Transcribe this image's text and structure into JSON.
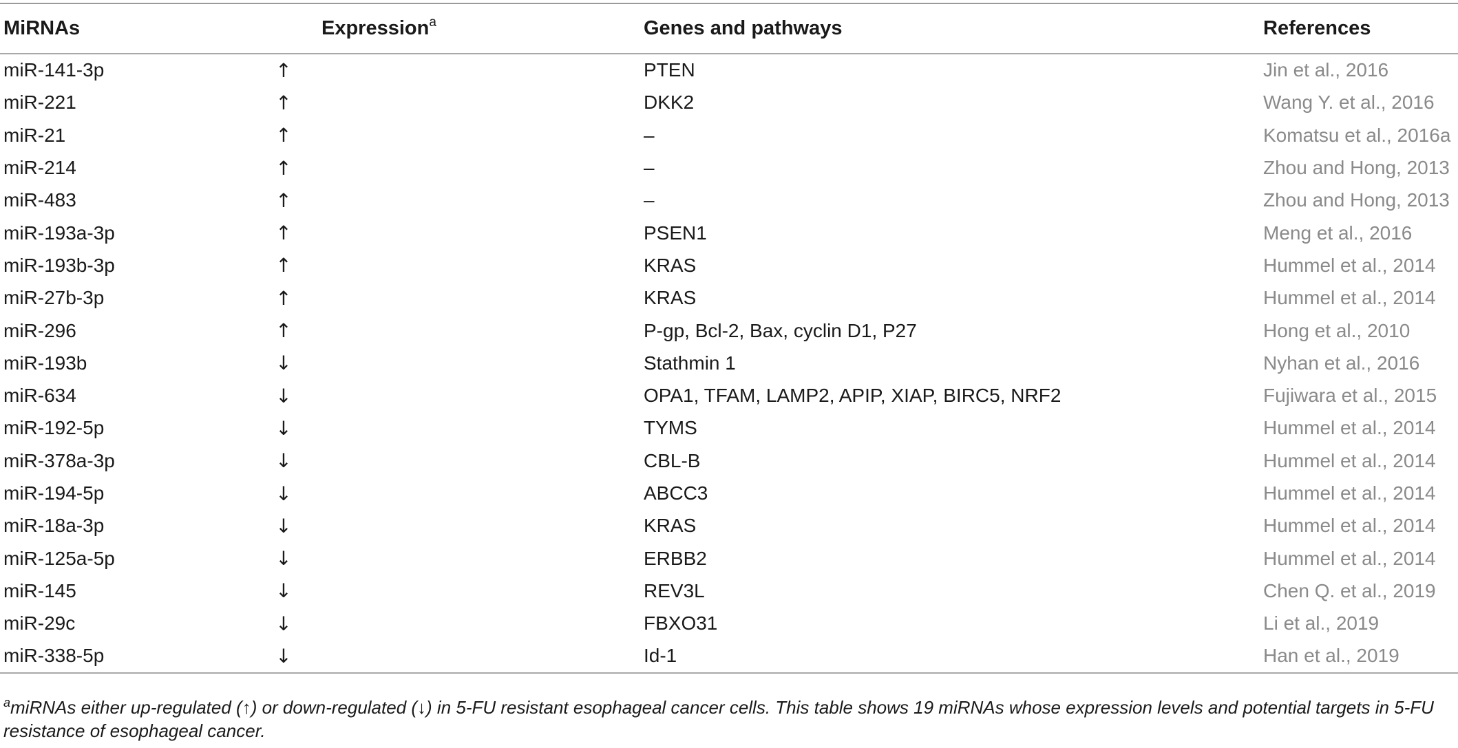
{
  "table": {
    "headers": {
      "mirna": "MiRNAs",
      "expression": "Expression",
      "expression_sup": "a",
      "genes": "Genes and pathways",
      "references": "References"
    },
    "rows": [
      {
        "mirna": "miR-141-3p",
        "expression": "↑",
        "genes": "PTEN",
        "reference": "Jin et al., 2016"
      },
      {
        "mirna": "miR-221",
        "expression": "↑",
        "genes": "DKK2",
        "reference": "Wang Y. et al., 2016"
      },
      {
        "mirna": "miR-21",
        "expression": "↑",
        "genes": "–",
        "reference": "Komatsu et al., 2016a"
      },
      {
        "mirna": "miR-214",
        "expression": "↑",
        "genes": "–",
        "reference": "Zhou and Hong, 2013"
      },
      {
        "mirna": "miR-483",
        "expression": "↑",
        "genes": "–",
        "reference": "Zhou and Hong, 2013"
      },
      {
        "mirna": "miR-193a-3p",
        "expression": "↑",
        "genes": "PSEN1",
        "reference": "Meng et al., 2016"
      },
      {
        "mirna": "miR-193b-3p",
        "expression": "↑",
        "genes": "KRAS",
        "reference": "Hummel et al., 2014"
      },
      {
        "mirna": "miR-27b-3p",
        "expression": "↑",
        "genes": "KRAS",
        "reference": "Hummel et al., 2014"
      },
      {
        "mirna": "miR-296",
        "expression": "↑",
        "genes": "P-gp, Bcl-2, Bax, cyclin D1, P27",
        "reference": "Hong et al., 2010"
      },
      {
        "mirna": "miR-193b",
        "expression": "↓",
        "genes": "Stathmin 1",
        "reference": "Nyhan et al., 2016"
      },
      {
        "mirna": "miR-634",
        "expression": "↓",
        "genes": "OPA1, TFAM, LAMP2, APIP, XIAP, BIRC5, NRF2",
        "reference": "Fujiwara et al., 2015"
      },
      {
        "mirna": "miR-192-5p",
        "expression": "↓",
        "genes": "TYMS",
        "reference": "Hummel et al., 2014"
      },
      {
        "mirna": "miR-378a-3p",
        "expression": "↓",
        "genes": "CBL-B",
        "reference": "Hummel et al., 2014"
      },
      {
        "mirna": "miR-194-5p",
        "expression": "↓",
        "genes": "ABCC3",
        "reference": "Hummel et al., 2014"
      },
      {
        "mirna": "miR-18a-3p",
        "expression": "↓",
        "genes": "KRAS",
        "reference": "Hummel et al., 2014"
      },
      {
        "mirna": "miR-125a-5p",
        "expression": "↓",
        "genes": "ERBB2",
        "reference": "Hummel et al., 2014"
      },
      {
        "mirna": "miR-145",
        "expression": "↓",
        "genes": "REV3L",
        "reference": "Chen Q. et al., 2019"
      },
      {
        "mirna": "miR-29c",
        "expression": "↓",
        "genes": "FBXO31",
        "reference": "Li et al., 2019"
      },
      {
        "mirna": "miR-338-5p",
        "expression": "↓",
        "genes": "Id-1",
        "reference": "Han et al., 2019"
      }
    ],
    "footnote": {
      "marker": "a",
      "text": "miRNAs either up-regulated (↑) or down-regulated (↓) in 5-FU resistant esophageal cancer cells. This table shows 19 miRNAs whose expression levels and potential targets in 5-FU resistance of esophageal cancer."
    }
  },
  "colors": {
    "text": "#1a1a1a",
    "reference_text": "#8a8a8a",
    "rule": "#9a9a9a"
  }
}
